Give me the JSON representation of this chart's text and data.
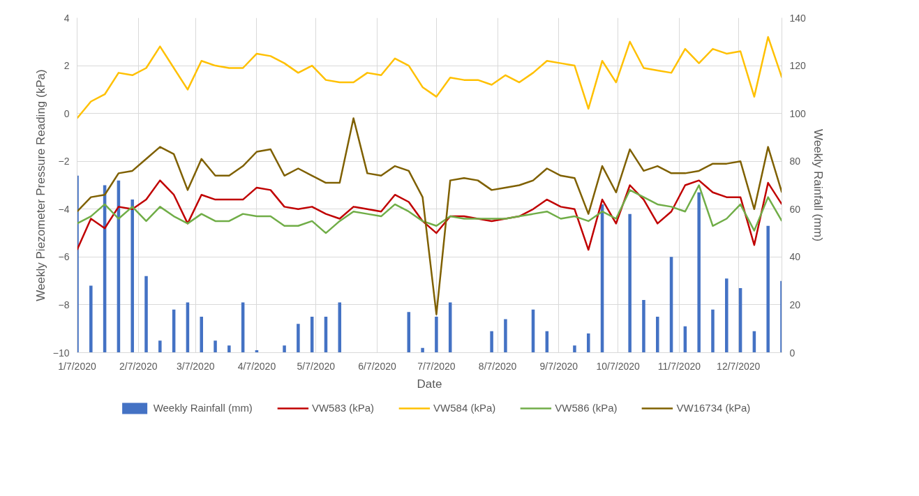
{
  "chart_data": {
    "type": "line",
    "xlabel": "Date",
    "ylabel": "Weekly Piezometer Pressure Reading (kPa)",
    "y2label": "Weekly Rainfall (mm)",
    "x": [
      "2020-01-07",
      "2020-01-14",
      "2020-01-21",
      "2020-01-28",
      "2020-02-04",
      "2020-02-11",
      "2020-02-18",
      "2020-02-25",
      "2020-03-03",
      "2020-03-10",
      "2020-03-17",
      "2020-03-24",
      "2020-03-31",
      "2020-04-07",
      "2020-04-14",
      "2020-04-21",
      "2020-04-28",
      "2020-05-05",
      "2020-05-12",
      "2020-05-19",
      "2020-05-26",
      "2020-06-02",
      "2020-06-09",
      "2020-06-16",
      "2020-06-23",
      "2020-06-30",
      "2020-07-07",
      "2020-07-14",
      "2020-07-21",
      "2020-07-28",
      "2020-08-04",
      "2020-08-11",
      "2020-08-18",
      "2020-08-25",
      "2020-09-01",
      "2020-09-08",
      "2020-09-15",
      "2020-09-22",
      "2020-09-29",
      "2020-10-06",
      "2020-10-13",
      "2020-10-20",
      "2020-10-27",
      "2020-11-03",
      "2020-11-10",
      "2020-11-17",
      "2020-11-24",
      "2020-12-01",
      "2020-12-08",
      "2020-12-15",
      "2020-12-22",
      "2020-12-29"
    ],
    "series": [
      {
        "name": "Weekly Rainfall (mm)",
        "type": "bar",
        "axis": "y2",
        "color": "#4472c4",
        "values": [
          74,
          28,
          70,
          72,
          64,
          32,
          5,
          18,
          21,
          15,
          5,
          3,
          21,
          1,
          0,
          3,
          12,
          15,
          15,
          21,
          0,
          0,
          0,
          0,
          17,
          2,
          15,
          21,
          0,
          0,
          9,
          14,
          0,
          18,
          9,
          0,
          3,
          8,
          62,
          0,
          58,
          22,
          15,
          40,
          11,
          67,
          18,
          31,
          27,
          9,
          53,
          30
        ]
      },
      {
        "name": "VW583 (kPa)",
        "color": "#c00000",
        "values": [
          -5.7,
          -4.4,
          -4.8,
          -3.9,
          -4.0,
          -3.6,
          -2.8,
          -3.4,
          -4.6,
          -3.4,
          -3.6,
          -3.6,
          -3.6,
          -3.1,
          -3.2,
          -3.9,
          -4.0,
          -3.9,
          -4.2,
          -4.4,
          -3.9,
          -4.0,
          -4.1,
          -3.4,
          -3.7,
          -4.5,
          -5.0,
          -4.3,
          -4.3,
          -4.4,
          -4.5,
          -4.4,
          -4.3,
          -4.0,
          -3.6,
          -3.9,
          -4.0,
          -5.7,
          -3.6,
          -4.6,
          -3.0,
          -3.6,
          -4.6,
          -4.1,
          -3.0,
          -2.8,
          -3.3,
          -3.5,
          -3.5,
          -5.5,
          -2.9,
          -3.8
        ]
      },
      {
        "name": "VW584 (kPa)",
        "color": "#ffc000",
        "values": [
          -0.2,
          0.5,
          0.8,
          1.7,
          1.6,
          1.9,
          2.8,
          1.9,
          1.0,
          2.2,
          2.0,
          1.9,
          1.9,
          2.5,
          2.4,
          2.1,
          1.7,
          2.0,
          1.4,
          1.3,
          1.3,
          1.7,
          1.6,
          2.3,
          2.0,
          1.1,
          0.7,
          1.5,
          1.4,
          1.4,
          1.2,
          1.6,
          1.3,
          1.7,
          2.2,
          2.1,
          2.0,
          0.2,
          2.2,
          1.3,
          3.0,
          1.9,
          1.8,
          1.7,
          2.7,
          2.1,
          2.7,
          2.5,
          2.6,
          0.7,
          3.2,
          1.5
        ]
      },
      {
        "name": "VW586 (kPa)",
        "color": "#70ad47",
        "values": [
          -4.6,
          -4.3,
          -3.8,
          -4.4,
          -3.9,
          -4.5,
          -3.9,
          -4.3,
          -4.6,
          -4.2,
          -4.5,
          -4.5,
          -4.2,
          -4.3,
          -4.3,
          -4.7,
          -4.7,
          -4.5,
          -5.0,
          -4.5,
          -4.1,
          -4.2,
          -4.3,
          -3.8,
          -4.1,
          -4.5,
          -4.7,
          -4.3,
          -4.4,
          -4.4,
          -4.4,
          -4.4,
          -4.3,
          -4.2,
          -4.1,
          -4.4,
          -4.3,
          -4.5,
          -4.1,
          -4.4,
          -3.2,
          -3.5,
          -3.8,
          -3.9,
          -4.1,
          -3.0,
          -4.7,
          -4.4,
          -3.8,
          -4.9,
          -3.5,
          -4.5
        ]
      },
      {
        "name": "VW16734 (kPa)",
        "color": "#7f6000",
        "values": [
          -4.1,
          -3.5,
          -3.4,
          -2.5,
          -2.4,
          -1.9,
          -1.4,
          -1.7,
          -3.2,
          -1.9,
          -2.6,
          -2.6,
          -2.2,
          -1.6,
          -1.5,
          -2.6,
          -2.3,
          -2.6,
          -2.9,
          -2.9,
          -0.2,
          -2.5,
          -2.6,
          -2.2,
          -2.4,
          -3.5,
          -8.4,
          -2.8,
          -2.7,
          -2.8,
          -3.2,
          -3.1,
          -3.0,
          -2.8,
          -2.3,
          -2.6,
          -2.7,
          -4.2,
          -2.2,
          -3.3,
          -1.5,
          -2.4,
          -2.2,
          -2.5,
          -2.5,
          -2.4,
          -2.1,
          -2.1,
          -2.0,
          -4.0,
          -1.4,
          -3.3
        ]
      }
    ],
    "xlim": [
      "2020-01-07",
      "2020-12-29"
    ],
    "xticks": [
      {
        "value": "2020-01-07",
        "label": "1/7/2020"
      },
      {
        "value": "2020-02-07",
        "label": "2/7/2020"
      },
      {
        "value": "2020-03-07",
        "label": "3/7/2020"
      },
      {
        "value": "2020-04-07",
        "label": "4/7/2020"
      },
      {
        "value": "2020-05-07",
        "label": "5/7/2020"
      },
      {
        "value": "2020-06-07",
        "label": "6/7/2020"
      },
      {
        "value": "2020-07-07",
        "label": "7/7/2020"
      },
      {
        "value": "2020-08-07",
        "label": "8/7/2020"
      },
      {
        "value": "2020-09-07",
        "label": "9/7/2020"
      },
      {
        "value": "2020-10-07",
        "label": "10/7/2020"
      },
      {
        "value": "2020-11-07",
        "label": "11/7/2020"
      },
      {
        "value": "2020-12-07",
        "label": "12/7/2020"
      }
    ],
    "ylim": [
      -10,
      4
    ],
    "yticks": [
      -10,
      -8,
      -6,
      -4,
      -2,
      0,
      2,
      4
    ],
    "y2lim": [
      0,
      140
    ],
    "y2ticks": [
      0,
      20,
      40,
      60,
      80,
      100,
      120,
      140
    ],
    "grid": true,
    "legend": "bottom",
    "line_style": "solid",
    "marker": "none"
  }
}
